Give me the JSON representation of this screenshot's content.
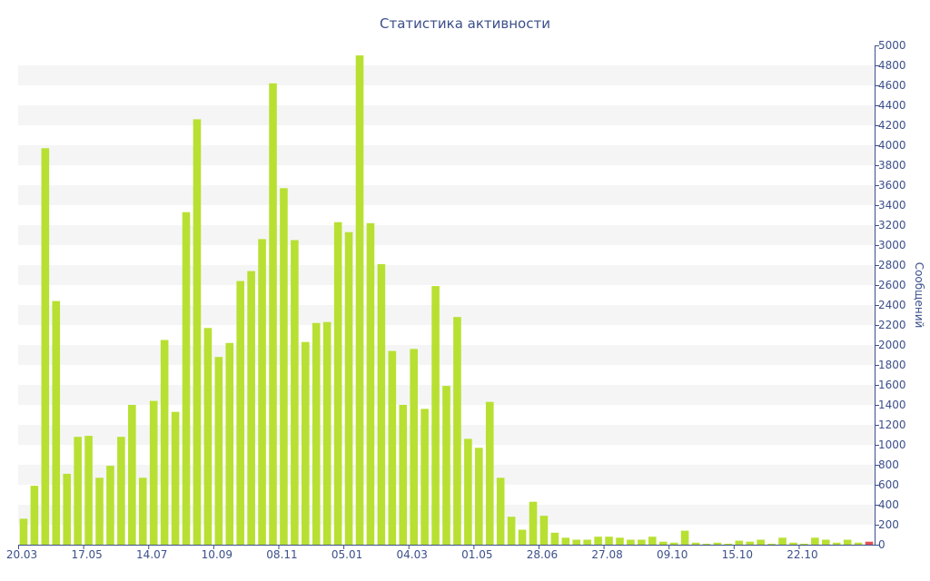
{
  "chart_data": {
    "type": "bar",
    "title": "Статистика активности",
    "xlabel": "",
    "ylabel": "Сообщений",
    "y_axis_side": "right",
    "ylim": [
      0,
      5000
    ],
    "y_ticks": [
      0,
      200,
      400,
      600,
      800,
      1000,
      1200,
      1400,
      1600,
      1800,
      2000,
      2200,
      2400,
      2600,
      2800,
      3000,
      3200,
      3400,
      3600,
      3800,
      4000,
      4200,
      4400,
      4600,
      4800,
      5000
    ],
    "grid": "alternating horizontal bands",
    "x_tick_labels": [
      {
        "label": "20.03",
        "index": 0
      },
      {
        "label": "17.05",
        "index": 6
      },
      {
        "label": "14.07",
        "index": 12
      },
      {
        "label": "10.09",
        "index": 18
      },
      {
        "label": "08.11",
        "index": 24
      },
      {
        "label": "05.01",
        "index": 30
      },
      {
        "label": "04.03",
        "index": 36
      },
      {
        "label": "01.05",
        "index": 42
      },
      {
        "label": "28.06",
        "index": 48
      },
      {
        "label": "27.08",
        "index": 54
      },
      {
        "label": "09.10",
        "index": 60
      },
      {
        "label": "15.10",
        "index": 66
      },
      {
        "label": "22.10",
        "index": 72
      }
    ],
    "values": [
      260,
      590,
      3970,
      2440,
      710,
      1080,
      1090,
      670,
      790,
      1080,
      1400,
      670,
      1440,
      2050,
      1330,
      3330,
      4260,
      2170,
      1880,
      2020,
      2640,
      2740,
      3060,
      4620,
      3570,
      3050,
      2030,
      2220,
      2230,
      3230,
      3130,
      4900,
      3220,
      2810,
      1940,
      1400,
      1960,
      1360,
      2590,
      1590,
      2280,
      1060,
      970,
      1430,
      670,
      280,
      150,
      430,
      290,
      120,
      70,
      50,
      50,
      80,
      80,
      70,
      50,
      50,
      80,
      30,
      20,
      140,
      20,
      10,
      20,
      10,
      40,
      30,
      50,
      10,
      70,
      20,
      10,
      70,
      50,
      20,
      50,
      20,
      30
    ],
    "bar_color": "#b8e032",
    "last_bar_color": "#e05050"
  }
}
